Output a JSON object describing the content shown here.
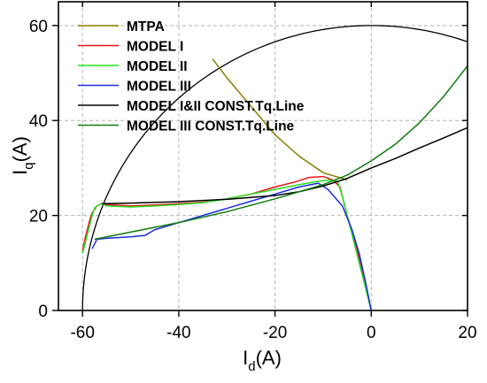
{
  "chart_data": {
    "type": "line",
    "xlabel_main": "I",
    "xlabel_sub": "d",
    "xlabel_unit": "(A)",
    "ylabel_main": "I",
    "ylabel_sub": "q",
    "ylabel_unit": "(A)",
    "xlim": [
      -65,
      20
    ],
    "ylim": [
      0,
      65
    ],
    "xticks": [
      -60,
      -40,
      -20,
      0,
      20
    ],
    "yticks": [
      0,
      20,
      40,
      60
    ],
    "grid": true,
    "legend_position": "top-left",
    "colors": {
      "mtpa": "#8b7d00",
      "model1": "#e8141c",
      "model2": "#22e01c",
      "model3": "#1c2ee0",
      "const12": "#000000",
      "const3": "#0e7a0e",
      "circle": "#000000"
    },
    "series": [
      {
        "name": "MTPA",
        "color_key": "mtpa",
        "points": [
          [
            -33,
            53
          ],
          [
            -30,
            49
          ],
          [
            -25,
            43
          ],
          [
            -20,
            37
          ],
          [
            -15,
            32.5
          ],
          [
            -10,
            29
          ],
          [
            -5,
            27.5
          ]
        ]
      },
      {
        "name": "MODEL I",
        "color_key": "model1",
        "points": [
          [
            -60,
            12.5
          ],
          [
            -59.5,
            15
          ],
          [
            -59,
            17
          ],
          [
            -58.5,
            19
          ],
          [
            -58,
            20.5
          ],
          [
            -57,
            22
          ],
          [
            -56,
            22.5
          ],
          [
            -55,
            22.3
          ],
          [
            -50,
            22
          ],
          [
            -45,
            22.2
          ],
          [
            -40,
            22.5
          ],
          [
            -35,
            22.8
          ],
          [
            -30,
            23.5
          ],
          [
            -25,
            24.5
          ],
          [
            -20,
            26
          ],
          [
            -16,
            27
          ],
          [
            -13,
            28
          ],
          [
            -10,
            28.2
          ],
          [
            -8,
            27.5
          ],
          [
            -6.5,
            26
          ],
          [
            -5,
            20
          ],
          [
            -3,
            13
          ],
          [
            -1.5,
            7
          ],
          [
            -0.5,
            2
          ],
          [
            0,
            0
          ]
        ]
      },
      {
        "name": "MODEL II",
        "color_key": "model2",
        "points": [
          [
            -60,
            12
          ],
          [
            -59.5,
            14
          ],
          [
            -59,
            16
          ],
          [
            -58.5,
            18
          ],
          [
            -58,
            20
          ],
          [
            -57.5,
            21.5
          ],
          [
            -57,
            22
          ],
          [
            -56,
            22.5
          ],
          [
            -55,
            22
          ],
          [
            -50,
            21.8
          ],
          [
            -45,
            22
          ],
          [
            -40,
            22.3
          ],
          [
            -35,
            22.7
          ],
          [
            -30,
            23.5
          ],
          [
            -25,
            24.5
          ],
          [
            -20,
            25.5
          ],
          [
            -15,
            26.5
          ],
          [
            -11,
            27.2
          ],
          [
            -8.5,
            27.5
          ],
          [
            -7,
            27.2
          ],
          [
            -6,
            24
          ],
          [
            -4.5,
            18
          ],
          [
            -3,
            12
          ],
          [
            -1.5,
            6
          ],
          [
            -0.5,
            2
          ],
          [
            0,
            0
          ]
        ]
      },
      {
        "name": "MODEL III",
        "color_key": "model3",
        "points": [
          [
            -58,
            13
          ],
          [
            -57.5,
            14
          ],
          [
            -57,
            15
          ],
          [
            -55,
            15.2
          ],
          [
            -50,
            15.5
          ],
          [
            -47,
            15.8
          ],
          [
            -45,
            17
          ],
          [
            -40,
            18.5
          ],
          [
            -35,
            20
          ],
          [
            -30,
            21.5
          ],
          [
            -25,
            23
          ],
          [
            -20,
            24.5
          ],
          [
            -15,
            26
          ],
          [
            -11,
            26.8
          ],
          [
            -9,
            25.5
          ],
          [
            -6,
            22
          ],
          [
            -4,
            17
          ],
          [
            -2.5,
            12
          ],
          [
            -1.2,
            6
          ],
          [
            -0.3,
            1.5
          ],
          [
            0,
            0
          ]
        ]
      },
      {
        "name": "MODEL I&II CONST.Tq.Line",
        "color_key": "const12",
        "points": [
          [
            -56,
            22.5
          ],
          [
            -50,
            22.6
          ],
          [
            -40,
            22.9
          ],
          [
            -30,
            23.4
          ],
          [
            -20,
            24.2
          ],
          [
            -15,
            25
          ],
          [
            -10,
            26.2
          ],
          [
            -5,
            27.8
          ],
          [
            0,
            30
          ],
          [
            5,
            32
          ],
          [
            10,
            34.2
          ],
          [
            15,
            36.3
          ],
          [
            20,
            38.5
          ]
        ]
      },
      {
        "name": "MODEL III CONST.Tq.Line",
        "color_key": "const3",
        "points": [
          [
            -57.5,
            15
          ],
          [
            -50,
            16.5
          ],
          [
            -40,
            18.5
          ],
          [
            -30,
            20.8
          ],
          [
            -20,
            23.5
          ],
          [
            -10,
            26.5
          ],
          [
            -5,
            28.5
          ],
          [
            0,
            31.5
          ],
          [
            5,
            35
          ],
          [
            10,
            39.5
          ],
          [
            15,
            45
          ],
          [
            20,
            51.5
          ]
        ]
      }
    ],
    "circle": {
      "radius": 60,
      "color_key": "circle"
    }
  }
}
